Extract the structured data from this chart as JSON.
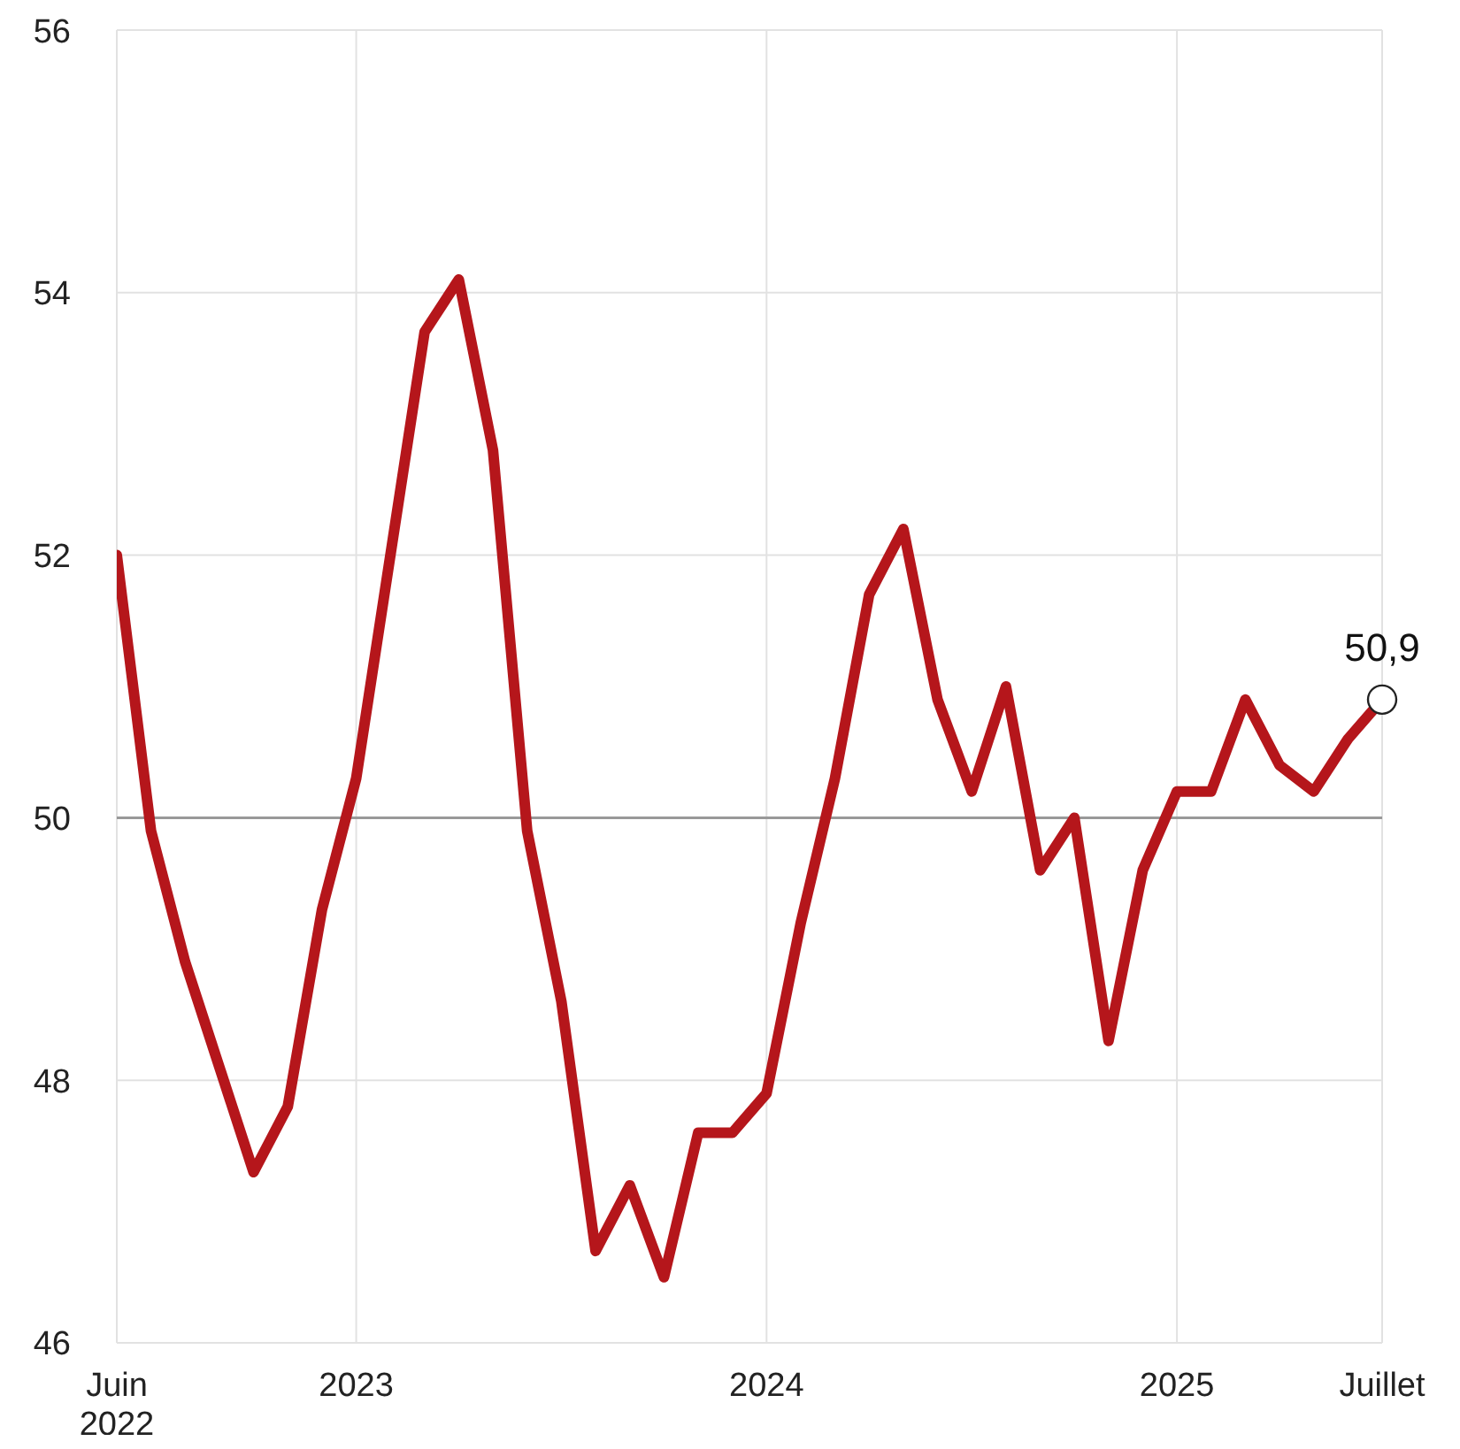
{
  "chart_data": {
    "type": "line",
    "x": [
      "2022-06",
      "2022-07",
      "2022-08",
      "2022-09",
      "2022-10",
      "2022-11",
      "2022-12",
      "2023-01",
      "2023-02",
      "2023-03",
      "2023-04",
      "2023-05",
      "2023-06",
      "2023-07",
      "2023-08",
      "2023-09",
      "2023-10",
      "2023-11",
      "2023-12",
      "2024-01",
      "2024-02",
      "2024-03",
      "2024-04",
      "2024-05",
      "2024-06",
      "2024-07",
      "2024-08",
      "2024-09",
      "2024-10",
      "2024-11",
      "2024-12",
      "2025-01",
      "2025-02",
      "2025-03",
      "2025-04",
      "2025-05",
      "2025-06",
      "2025-07"
    ],
    "series": [
      {
        "color": "#b5161b",
        "values": [
          52.0,
          49.9,
          48.9,
          48.1,
          47.3,
          47.8,
          49.3,
          50.3,
          52.0,
          53.7,
          54.1,
          52.8,
          49.9,
          48.6,
          46.7,
          47.2,
          46.5,
          47.6,
          47.6,
          47.9,
          49.2,
          50.3,
          51.7,
          52.2,
          50.9,
          50.2,
          51.0,
          49.6,
          50.0,
          48.3,
          49.6,
          50.2,
          50.2,
          50.9,
          50.4,
          50.2,
          50.6,
          50.9
        ]
      }
    ],
    "xlim": [
      "2022-06",
      "2025-07"
    ],
    "xticks": [
      {
        "value": "2022-06",
        "label": "Juin 2022"
      },
      {
        "value": "2023-01",
        "label": "2023"
      },
      {
        "value": "2024-01",
        "label": "2024"
      },
      {
        "value": "2025-01",
        "label": "2025"
      },
      {
        "value": "2025-07",
        "label": "Juillet"
      }
    ],
    "ylim": [
      46,
      56
    ],
    "yticks": [
      46,
      48,
      50,
      52,
      54,
      56
    ],
    "grid": true,
    "marker": "none",
    "line_style": "solid",
    "ref_lines": [
      {
        "axis": "y",
        "value": 50,
        "color": "#999999"
      }
    ],
    "annotations": [
      {
        "text": "50,9",
        "x": "2025-07",
        "y": 50.9
      }
    ]
  }
}
